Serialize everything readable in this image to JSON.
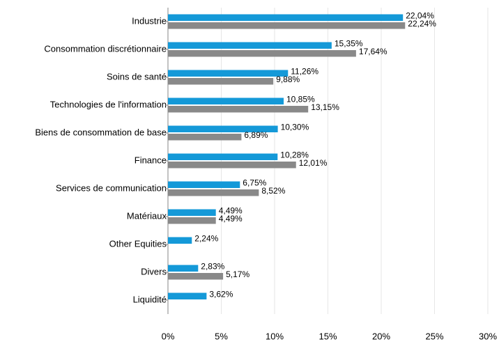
{
  "chart_data": {
    "type": "bar",
    "orientation": "horizontal",
    "categories": [
      "Industrie",
      "Consommation discrétionnaire",
      "Soins de santé",
      "Technologies de l'information",
      "Biens de consommation de base",
      "Finance",
      "Services de communication",
      "Matériaux",
      "Other Equities",
      "Divers",
      "Liquidité"
    ],
    "series": [
      {
        "color": "#1499d8",
        "values": [
          22.04,
          15.35,
          11.26,
          10.85,
          10.3,
          10.28,
          6.75,
          4.49,
          2.24,
          2.83,
          3.62
        ],
        "value_labels": [
          "22,04%",
          "15,35%",
          "11,26%",
          "10,85%",
          "10,30%",
          "10,28%",
          "6,75%",
          "4,49%",
          "2,24%",
          "2,83%",
          "3,62%"
        ]
      },
      {
        "color": "#898989",
        "values": [
          22.24,
          17.64,
          9.88,
          13.15,
          6.89,
          12.01,
          8.52,
          4.49,
          null,
          5.17,
          null
        ],
        "value_labels": [
          "22,24%",
          "17,64%",
          "9,88%",
          "13,15%",
          "6,89%",
          "12,01%",
          "8,52%",
          "4,49%",
          null,
          "5,17%",
          null
        ]
      }
    ],
    "xlim": [
      0,
      30
    ],
    "xticks": [
      {
        "value": 0,
        "label": "0%"
      },
      {
        "value": 5,
        "label": "5%"
      },
      {
        "value": 10,
        "label": "10%"
      },
      {
        "value": 15,
        "label": "15%"
      },
      {
        "value": 20,
        "label": "20%"
      },
      {
        "value": 25,
        "label": "25%"
      },
      {
        "value": 30,
        "label": "30%"
      }
    ],
    "grid": true
  }
}
